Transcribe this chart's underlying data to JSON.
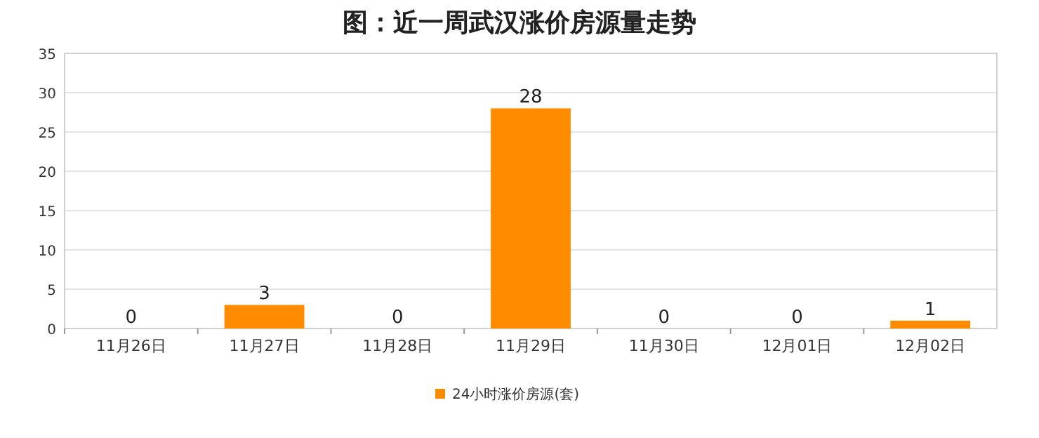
{
  "chart_data": {
    "type": "bar",
    "title": "图：近一周武汉涨价房源量走势",
    "categories": [
      "11月26日",
      "11月27日",
      "11月28日",
      "11月29日",
      "11月30日",
      "12月01日",
      "12月02日"
    ],
    "series": [
      {
        "name": "24小时涨价房源(套)",
        "color": "#ff8c00",
        "values": [
          0,
          3,
          0,
          28,
          0,
          0,
          1
        ]
      }
    ],
    "ylim": [
      0,
      35
    ],
    "yticks": [
      0,
      5,
      10,
      15,
      20,
      25,
      30,
      35
    ],
    "grid": "y",
    "legend": "bottom",
    "data_labels": true
  }
}
